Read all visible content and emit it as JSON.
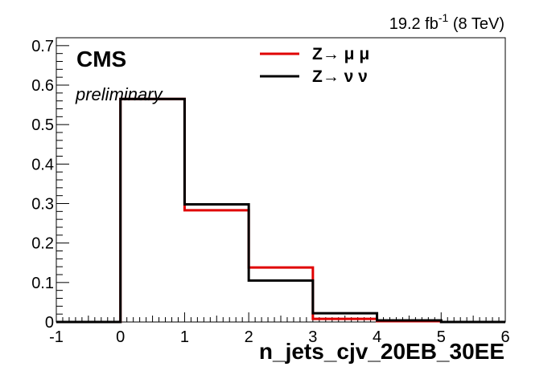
{
  "chart_data": {
    "type": "histogram",
    "title": "",
    "xlabel": "n_jets_cjv_20EB_30EE",
    "ylabel": "",
    "xlim": [
      -1,
      6
    ],
    "ylim": [
      0,
      0.72
    ],
    "bin_edges": [
      -1,
      0,
      1,
      2,
      3,
      4,
      5,
      6
    ],
    "series": [
      {
        "name": "Z→ μ μ",
        "color": "#e00000",
        "values": [
          0,
          0.565,
          0.283,
          0.138,
          0.008,
          0.002,
          0.0
        ]
      },
      {
        "name": "Z→ ν ν",
        "color": "#000000",
        "values": [
          0,
          0.565,
          0.298,
          0.105,
          0.022,
          0.004,
          0.0
        ]
      }
    ],
    "x_ticks": [
      "-1",
      "0",
      "1",
      "2",
      "3",
      "4",
      "5",
      "6"
    ],
    "y_ticks": [
      "0",
      "0.1",
      "0.2",
      "0.3",
      "0.4",
      "0.5",
      "0.6",
      "0.7"
    ],
    "legend_position": "top-right",
    "grid": false
  },
  "labels": {
    "experiment": "CMS",
    "status": "preliminary",
    "lumi_value": "19.2 fb",
    "lumi_exp": "-1",
    "lumi_energy": " (8 TeV)"
  }
}
